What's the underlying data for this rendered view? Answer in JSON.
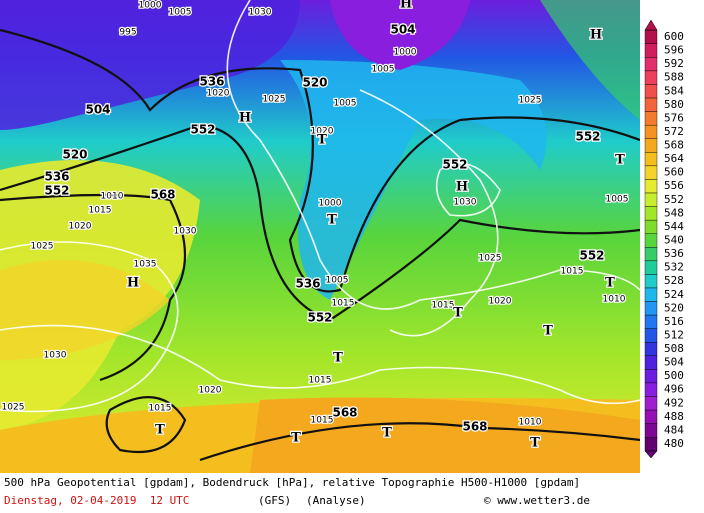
{
  "map": {
    "geopotential_labels": [
      "504",
      "504",
      "520",
      "520",
      "536",
      "552",
      "536",
      "552",
      "568",
      "552",
      "552",
      "552",
      "536",
      "552",
      "568",
      "568"
    ],
    "pressure_labels": [
      "1005",
      "1030",
      "995",
      "1000",
      "1020",
      "1025",
      "1005",
      "1005",
      "1000",
      "1020",
      "1000",
      "1005",
      "1015",
      "1025",
      "1030",
      "1025",
      "1015",
      "1010",
      "1020",
      "1015",
      "1005",
      "1010",
      "1015",
      "1020",
      "1025",
      "1035",
      "1030",
      "1030",
      "1020",
      "1025",
      "1015",
      "1015",
      "1015",
      "1010"
    ],
    "centers": [
      "H",
      "H",
      "H",
      "H",
      "H",
      "T",
      "T",
      "T",
      "T",
      "T",
      "T",
      "T",
      "T",
      "T",
      "T",
      "T"
    ]
  },
  "colorbar": {
    "levels": [
      600,
      596,
      592,
      588,
      584,
      580,
      576,
      572,
      568,
      564,
      560,
      556,
      552,
      548,
      544,
      540,
      536,
      532,
      528,
      524,
      520,
      516,
      512,
      508,
      504,
      500,
      496,
      492,
      488,
      484,
      480
    ],
    "colors": [
      "#b3104e",
      "#d01f5e",
      "#e02f6a",
      "#ee3f5c",
      "#f0504c",
      "#f2643c",
      "#f47a2e",
      "#f49222",
      "#f4a81e",
      "#f4be1e",
      "#f2d42a",
      "#e6ea30",
      "#c6ee2e",
      "#a2e62a",
      "#7edc2e",
      "#58d43c",
      "#36cc68",
      "#22cc9a",
      "#20ccca",
      "#20b6ee",
      "#2296f2",
      "#2276f0",
      "#2256e4",
      "#3236de",
      "#4e22de",
      "#6c1ede",
      "#8a1ede",
      "#9e1ed0",
      "#9410b4",
      "#7e0894",
      "#620070"
    ]
  },
  "footer": {
    "line1": "500 hPa Geopotential [gpdam], Bodendruck [hPa], relative Topographie H500-H1000 [gpdam]",
    "date": "Dienstag, 02-04-2019  12 UTC",
    "model": "(GFS)",
    "run": "(Analyse)",
    "credit": "© www.wetter3.de"
  }
}
